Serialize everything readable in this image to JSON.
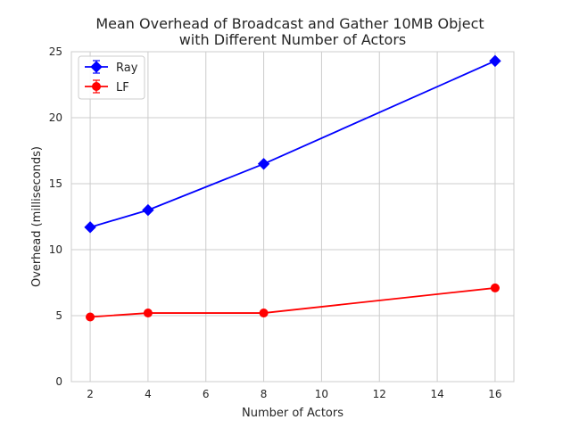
{
  "chart_data": {
    "type": "line",
    "title": [
      "Mean Overhead of Broadcast and Gather 10MB Object",
      "with Different Number of Actors"
    ],
    "xlabel": "Number of Actors",
    "ylabel": "Overhead (milliseconds)",
    "xlim": [
      1.35,
      16.65
    ],
    "ylim": [
      0,
      25
    ],
    "xticks": [
      2,
      4,
      6,
      8,
      10,
      12,
      14,
      16
    ],
    "yticks": [
      0,
      5,
      10,
      15,
      20,
      25
    ],
    "grid": true,
    "legend_position": "top-left",
    "series": [
      {
        "name": "Ray",
        "color": "#0000ff",
        "marker": "diamond",
        "x": [
          2,
          4,
          8,
          16
        ],
        "y": [
          11.7,
          13.0,
          16.5,
          24.3
        ]
      },
      {
        "name": "LF",
        "color": "#ff0000",
        "marker": "circle",
        "x": [
          2,
          4,
          8,
          16
        ],
        "y": [
          4.9,
          5.2,
          5.2,
          7.1
        ]
      }
    ]
  }
}
